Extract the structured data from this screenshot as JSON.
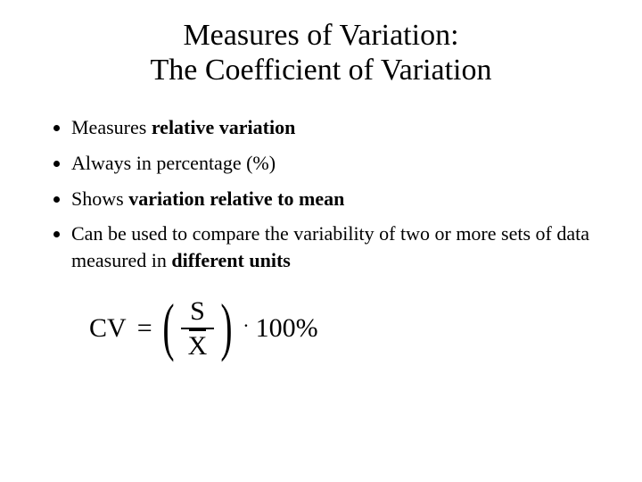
{
  "colors": {
    "background": "#ffffff",
    "text": "#000000"
  },
  "title": {
    "line1": "Measures of Variation:",
    "line2": "The Coefficient of Variation",
    "fontsize": 34
  },
  "bullets": {
    "fontsize": 22,
    "items": [
      {
        "pre": "Measures ",
        "bold": "relative variation",
        "post": ""
      },
      {
        "pre": "Always in percentage (%)",
        "bold": "",
        "post": ""
      },
      {
        "pre": "Shows ",
        "bold": "variation relative to mean",
        "post": ""
      },
      {
        "pre": "Can be used to compare the variability of two or more sets of data measured in ",
        "bold": "different units",
        "post": ""
      }
    ]
  },
  "formula": {
    "label": "CV",
    "equals": "=",
    "numerator": "S",
    "denominator": "X",
    "dot": "·",
    "suffix": "100%",
    "paren_left": "(",
    "paren_right": ")",
    "fontsize": 30,
    "paren_fontsize": 72
  }
}
